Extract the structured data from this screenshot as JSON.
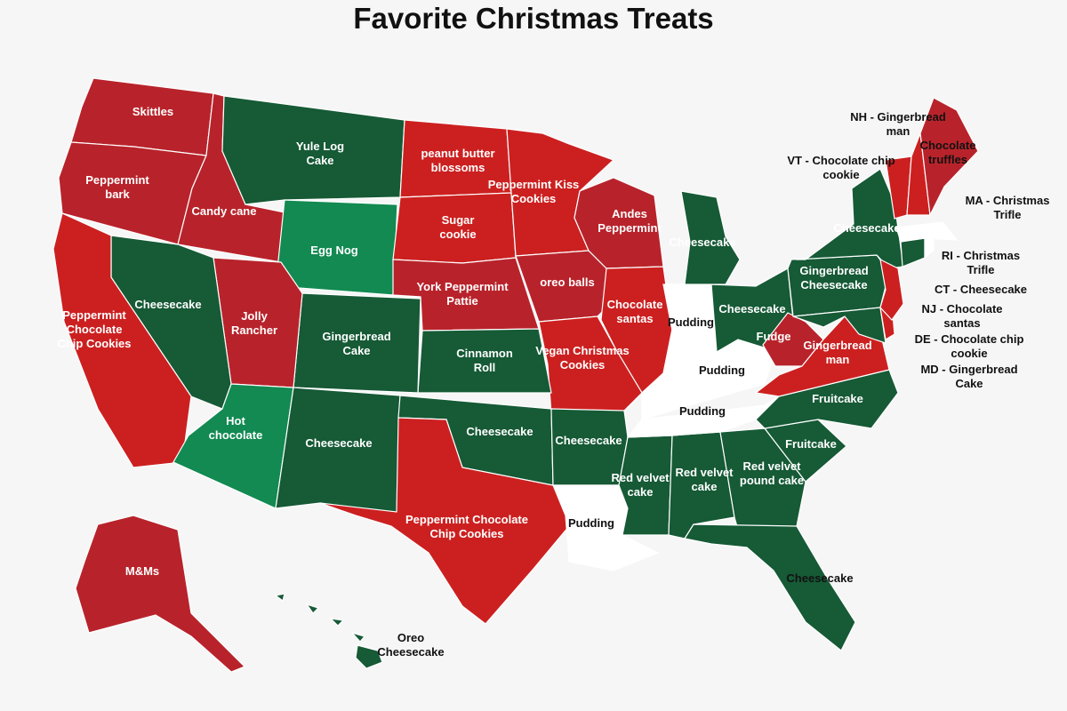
{
  "title": "Favorite Christmas Treats",
  "colors": {
    "dark_red": "#b8232b",
    "red": "#cc2020",
    "dark_green": "#165a36",
    "light_green": "#128a52",
    "none": "#ffffff",
    "border": "#ffffff",
    "background": "#f6f6f6"
  },
  "states": [
    {
      "label": "Skittles",
      "fill": "#b8232b"
    },
    {
      "label": "Peppermint bark",
      "fill": "#b8232b"
    },
    {
      "label": "Candy cane",
      "fill": "#b8232b"
    },
    {
      "label": "Yule Log Cake",
      "fill": "#165a36"
    },
    {
      "label": "Egg Nog",
      "fill": "#128a52"
    },
    {
      "label": "peanut butter blossoms",
      "fill": "#cc2020"
    },
    {
      "label": "Sugar cookie",
      "fill": "#cc2020"
    },
    {
      "label": "York Peppermint Pattie",
      "fill": "#b8232b"
    },
    {
      "label": "Peppermint Kiss Cookies",
      "fill": "#cc2020"
    },
    {
      "label": "oreo balls",
      "fill": "#b8232b"
    },
    {
      "label": "Andes Peppermint",
      "fill": "#b8232b"
    },
    {
      "label": "Chocolate santas",
      "fill": "#cc2020"
    },
    {
      "label": "Vegan Christmas Cookies",
      "fill": "#cc2020"
    },
    {
      "label": "Cinnamon Roll",
      "fill": "#165a36"
    },
    {
      "label": "Gingerbread Cake",
      "fill": "#165a36"
    },
    {
      "label": "Jolly Rancher",
      "fill": "#b8232b"
    },
    {
      "label": "Cheesecake",
      "fill": "#165a36"
    },
    {
      "label": "Peppermint Chocolate Chip Cookies",
      "fill": "#cc2020"
    },
    {
      "label": "Hot chocolate",
      "fill": "#128a52"
    },
    {
      "label": "Cheesecake",
      "fill": "#165a36"
    },
    {
      "label": "Cheesecake",
      "fill": "#165a36"
    },
    {
      "label": "Peppermint Chocolate Chip Cookies",
      "fill": "#cc2020"
    },
    {
      "label": "Cheesecake",
      "fill": "#165a36"
    },
    {
      "label": "Pudding",
      "fill": "#ffffff"
    },
    {
      "label": "Red velvet cake",
      "fill": "#165a36"
    },
    {
      "label": "Red velvet cake",
      "fill": "#165a36"
    },
    {
      "label": "Red velvet pound cake",
      "fill": "#165a36"
    },
    {
      "label": "Cheesecake",
      "fill": "#165a36"
    },
    {
      "label": "Fruitcake",
      "fill": "#165a36"
    },
    {
      "label": "Fruitcake",
      "fill": "#165a36"
    },
    {
      "label": "Pudding",
      "fill": "#ffffff"
    },
    {
      "label": "Pudding",
      "fill": "#ffffff"
    },
    {
      "label": "Pudding",
      "fill": "#ffffff"
    },
    {
      "label": "Cheesecake",
      "fill": "#165a36"
    },
    {
      "label": "Cheesecake",
      "fill": "#165a36"
    },
    {
      "label": "Fudge",
      "fill": "#b8232b"
    },
    {
      "label": "Gingerbread man",
      "fill": "#cc2020"
    },
    {
      "label": "Gingerbread Cheesecake",
      "fill": "#165a36"
    },
    {
      "label": "Cheesecake",
      "fill": "#165a36"
    },
    {
      "label": "",
      "fill": "#165a36"
    },
    {
      "label": "",
      "fill": "#cc2020"
    },
    {
      "label": "",
      "fill": "#cc2020"
    },
    {
      "label": "",
      "fill": "#165a36"
    },
    {
      "label": "",
      "fill": "#ffffff"
    },
    {
      "label": "",
      "fill": "#cc2020"
    },
    {
      "label": "",
      "fill": "#cc2020"
    },
    {
      "label": "Chocolate truffles",
      "fill": "#b8232b"
    },
    {
      "label": "M&Ms",
      "fill": "#b8232b"
    },
    {
      "label": "Oreo Cheesecake",
      "fill": "#165a36"
    },
    {
      "label": "",
      "fill": "#ffffff"
    }
  ],
  "callouts": [
    "NH - Gingerbread man",
    "VT - Chocolate chip cookie",
    "MA - Christmas Trifle",
    "RI - Christmas Trifle",
    "CT - Cheesecake",
    "NJ - Chocolate santas",
    "DE - Chocolate chip cookie",
    "MD - Gingerbread Cake"
  ]
}
